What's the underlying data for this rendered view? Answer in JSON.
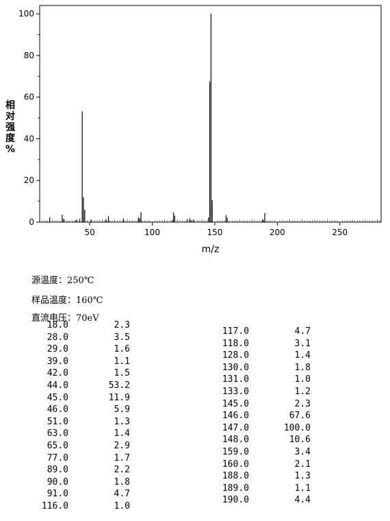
{
  "chart_data": {
    "type": "bar",
    "xlabel": "m/z",
    "ylabel": "相对强度%",
    "xlim": [
      10,
      283
    ],
    "ylim": [
      0,
      104
    ],
    "xticks": [
      50,
      100,
      150,
      200,
      250
    ],
    "yticks": [
      0,
      20,
      40,
      60,
      80,
      100
    ],
    "peaks": [
      {
        "mz": 18.0,
        "intensity": 2.3
      },
      {
        "mz": 28.0,
        "intensity": 3.5
      },
      {
        "mz": 29.0,
        "intensity": 1.6
      },
      {
        "mz": 39.0,
        "intensity": 1.1
      },
      {
        "mz": 42.0,
        "intensity": 1.5
      },
      {
        "mz": 44.0,
        "intensity": 53.2
      },
      {
        "mz": 45.0,
        "intensity": 11.9
      },
      {
        "mz": 46.0,
        "intensity": 5.9
      },
      {
        "mz": 51.0,
        "intensity": 1.3
      },
      {
        "mz": 63.0,
        "intensity": 1.4
      },
      {
        "mz": 65.0,
        "intensity": 2.9
      },
      {
        "mz": 77.0,
        "intensity": 1.7
      },
      {
        "mz": 89.0,
        "intensity": 2.2
      },
      {
        "mz": 90.0,
        "intensity": 1.8
      },
      {
        "mz": 91.0,
        "intensity": 4.7
      },
      {
        "mz": 116.0,
        "intensity": 1.0
      },
      {
        "mz": 117.0,
        "intensity": 4.7
      },
      {
        "mz": 118.0,
        "intensity": 3.1
      },
      {
        "mz": 128.0,
        "intensity": 1.4
      },
      {
        "mz": 130.0,
        "intensity": 1.8
      },
      {
        "mz": 131.0,
        "intensity": 1.0
      },
      {
        "mz": 133.0,
        "intensity": 1.2
      },
      {
        "mz": 145.0,
        "intensity": 2.3
      },
      {
        "mz": 146.0,
        "intensity": 67.6
      },
      {
        "mz": 147.0,
        "intensity": 100.0
      },
      {
        "mz": 148.0,
        "intensity": 10.6
      },
      {
        "mz": 159.0,
        "intensity": 3.4
      },
      {
        "mz": 160.0,
        "intensity": 2.1
      },
      {
        "mz": 188.0,
        "intensity": 1.3
      },
      {
        "mz": 189.0,
        "intensity": 1.1
      },
      {
        "mz": 190.0,
        "intensity": 4.4
      }
    ]
  },
  "conditions": {
    "source_temp": "源温度：250℃",
    "sample_temp": "样品温度：160℃",
    "dc_voltage": "直流电压：70eV"
  },
  "table_left": [
    {
      "mz": "18.0",
      "intensity": "2.3"
    },
    {
      "mz": "28.0",
      "intensity": "3.5"
    },
    {
      "mz": "29.0",
      "intensity": "1.6"
    },
    {
      "mz": "39.0",
      "intensity": "1.1"
    },
    {
      "mz": "42.0",
      "intensity": "1.5"
    },
    {
      "mz": "44.0",
      "intensity": "53.2"
    },
    {
      "mz": "45.0",
      "intensity": "11.9"
    },
    {
      "mz": "46.0",
      "intensity": "5.9"
    },
    {
      "mz": "51.0",
      "intensity": "1.3"
    },
    {
      "mz": "63.0",
      "intensity": "1.4"
    },
    {
      "mz": "65.0",
      "intensity": "2.9"
    },
    {
      "mz": "77.0",
      "intensity": "1.7"
    },
    {
      "mz": "89.0",
      "intensity": "2.2"
    },
    {
      "mz": "90.0",
      "intensity": "1.8"
    },
    {
      "mz": "91.0",
      "intensity": "4.7"
    },
    {
      "mz": "116.0",
      "intensity": "1.0"
    }
  ],
  "table_right": [
    {
      "mz": "117.0",
      "intensity": "4.7"
    },
    {
      "mz": "118.0",
      "intensity": "3.1"
    },
    {
      "mz": "128.0",
      "intensity": "1.4"
    },
    {
      "mz": "130.0",
      "intensity": "1.8"
    },
    {
      "mz": "131.0",
      "intensity": "1.0"
    },
    {
      "mz": "133.0",
      "intensity": "1.2"
    },
    {
      "mz": "145.0",
      "intensity": "2.3"
    },
    {
      "mz": "146.0",
      "intensity": "67.6"
    },
    {
      "mz": "147.0",
      "intensity": "100.0"
    },
    {
      "mz": "148.0",
      "intensity": "10.6"
    },
    {
      "mz": "159.0",
      "intensity": "3.4"
    },
    {
      "mz": "160.0",
      "intensity": "2.1"
    },
    {
      "mz": "188.0",
      "intensity": "1.3"
    },
    {
      "mz": "189.0",
      "intensity": "1.1"
    },
    {
      "mz": "190.0",
      "intensity": "4.4"
    }
  ]
}
